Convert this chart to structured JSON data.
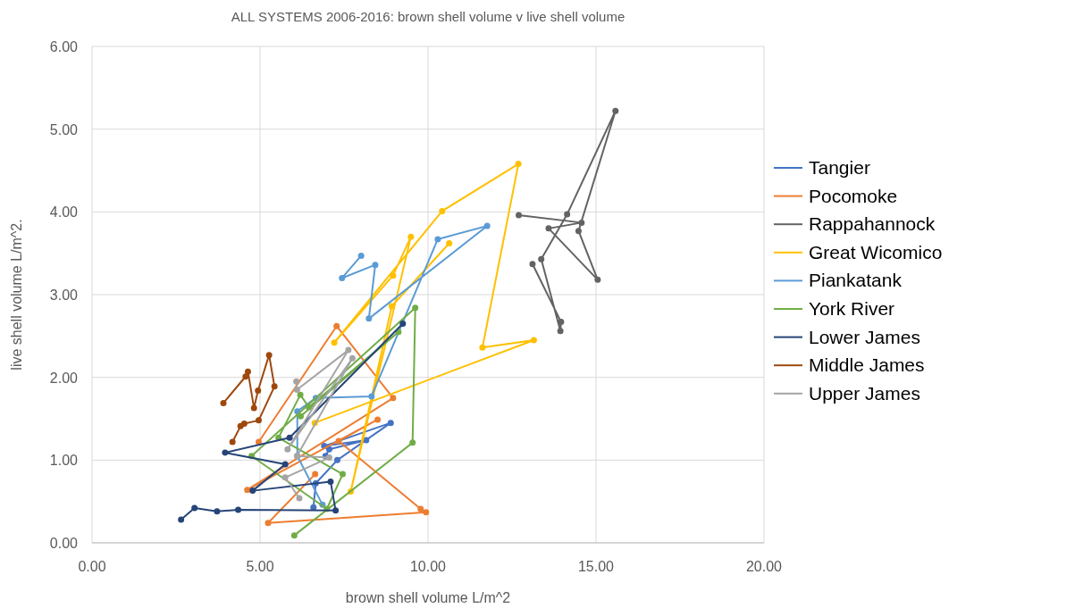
{
  "chart_data": {
    "type": "line",
    "title": "ALL SYSTEMS 2006-2016: brown shell volume v live shell volume",
    "xlabel": "brown shell volume L/m^2",
    "ylabel": "live shell volume L/m^2.",
    "xlim": [
      0,
      20
    ],
    "ylim": [
      0,
      6
    ],
    "xticks": [
      {
        "value": 0,
        "label": "0.00"
      },
      {
        "value": 5,
        "label": "5.00"
      },
      {
        "value": 10,
        "label": "10.00"
      },
      {
        "value": 15,
        "label": "15.00"
      },
      {
        "value": 20,
        "label": "20.00"
      }
    ],
    "yticks": [
      {
        "value": 0,
        "label": "0.00"
      },
      {
        "value": 1,
        "label": "1.00"
      },
      {
        "value": 2,
        "label": "2.00"
      },
      {
        "value": 3,
        "label": "3.00"
      },
      {
        "value": 4,
        "label": "4.00"
      },
      {
        "value": 5,
        "label": "5.00"
      },
      {
        "value": 6,
        "label": "6.00"
      }
    ],
    "grid": true,
    "legend": "right",
    "marker": "circle",
    "line_style": "solid",
    "series": [
      {
        "name": "Tangier",
        "color": "#4472c4",
        "x": [
          6.59,
          6.66,
          7.3,
          8.89,
          6.91,
          8.16,
          7.06,
          6.95
        ],
        "values": [
          0.43,
          0.72,
          1.0,
          1.45,
          1.17,
          1.24,
          1.13,
          1.05
        ]
      },
      {
        "name": "Pocomoke",
        "color": "#ed7d31",
        "x": [
          4.96,
          7.28,
          8.96,
          4.62,
          8.5,
          7.34,
          9.78,
          9.94,
          5.24,
          6.64
        ],
        "values": [
          1.22,
          2.62,
          1.75,
          0.64,
          1.49,
          1.23,
          0.41,
          0.37,
          0.24,
          0.83
        ]
      },
      {
        "name": "Rappahannock",
        "color": "#636363",
        "x": [
          12.7,
          14.57,
          13.59,
          15.05,
          14.48,
          15.58,
          14.14,
          13.37,
          13.94,
          13.96,
          13.11
        ],
        "values": [
          3.96,
          3.87,
          3.8,
          3.18,
          3.77,
          5.22,
          3.97,
          3.43,
          2.56,
          2.67,
          3.37
        ]
      },
      {
        "name": "Great Wicomico",
        "color": "#ffc000",
        "x": [
          6.63,
          13.15,
          11.62,
          12.69,
          10.42,
          7.21,
          8.96,
          9.49,
          7.7,
          8.92,
          10.63
        ],
        "values": [
          1.45,
          2.45,
          2.36,
          4.58,
          4.01,
          2.42,
          3.23,
          3.7,
          0.62,
          2.86,
          3.62
        ]
      },
      {
        "name": "Piankatank",
        "color": "#5b9bd5",
        "x": [
          8.01,
          7.44,
          8.43,
          8.24,
          11.76,
          10.29,
          8.32,
          6.66,
          6.11,
          6.11,
          6.86
        ],
        "values": [
          3.47,
          3.2,
          3.36,
          2.71,
          3.83,
          3.67,
          1.77,
          1.75,
          1.59,
          1.05,
          0.46
        ]
      },
      {
        "name": "York River",
        "color": "#70ad47",
        "x": [
          6.02,
          9.54,
          9.62,
          4.75,
          6.99,
          7.46,
          5.55,
          6.2,
          6.45,
          9.12,
          6.21
        ],
        "values": [
          0.09,
          1.21,
          2.84,
          1.05,
          0.41,
          0.83,
          1.27,
          1.79,
          1.64,
          2.55,
          1.53
        ]
      },
      {
        "name": "Lower James",
        "color": "#264478",
        "x": [
          2.65,
          3.05,
          3.72,
          4.35,
          7.25,
          7.1,
          4.78,
          5.75,
          3.96,
          5.88,
          9.25
        ],
        "values": [
          0.28,
          0.42,
          0.38,
          0.4,
          0.39,
          0.74,
          0.63,
          0.95,
          1.09,
          1.27,
          2.65
        ]
      },
      {
        "name": "Middle James",
        "color": "#9e480e",
        "x": [
          3.91,
          4.57,
          4.64,
          4.82,
          4.94,
          5.27,
          5.43,
          4.96,
          4.53,
          4.42,
          4.18
        ],
        "values": [
          1.69,
          2.01,
          2.07,
          1.63,
          1.84,
          2.27,
          1.89,
          1.48,
          1.44,
          1.41,
          1.22
        ]
      },
      {
        "name": "Upper James",
        "color": "#a5a5a5",
        "x": [
          6.08,
          6.1,
          7.63,
          5.82,
          7.75,
          6.1,
          7.06,
          5.75,
          6.17
        ],
        "values": [
          1.95,
          1.85,
          2.33,
          1.13,
          2.23,
          1.05,
          1.03,
          0.79,
          0.54
        ]
      }
    ]
  }
}
